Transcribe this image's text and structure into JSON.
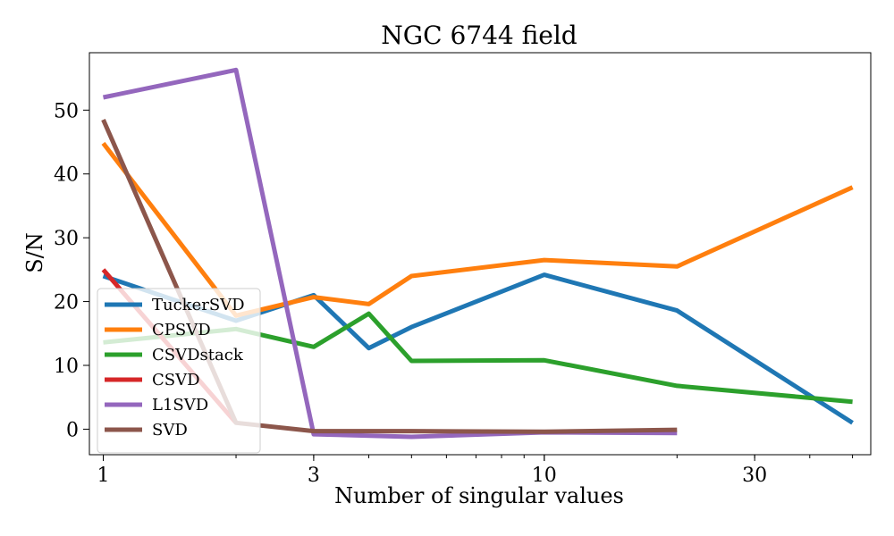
{
  "chart_data": {
    "type": "line",
    "title": "NGC 6744 field",
    "xlabel": "Number of singular values",
    "ylabel": "S/N",
    "xscale": "log",
    "xlim": [
      0.93,
      55
    ],
    "ylim": [
      -4,
      59
    ],
    "xticks": [
      1,
      3,
      10,
      30
    ],
    "xtick_labels": [
      "1",
      "3",
      "10",
      "30"
    ],
    "yticks": [
      0,
      10,
      20,
      30,
      40,
      50
    ],
    "ytick_labels": [
      "0",
      "10",
      "20",
      "30",
      "40",
      "50"
    ],
    "grid": false,
    "legend_position": "lower-left",
    "series": [
      {
        "name": "TuckerSVD",
        "color": "#1f77b4",
        "x": [
          1,
          2,
          3,
          4,
          5,
          10,
          20,
          50
        ],
        "y": [
          24,
          17,
          21,
          12.7,
          16,
          24.2,
          18.6,
          1
        ]
      },
      {
        "name": "CPSVD",
        "color": "#ff7f0e",
        "x": [
          1,
          2,
          3,
          4,
          5,
          10,
          20,
          50
        ],
        "y": [
          44.8,
          17.8,
          20.7,
          19.6,
          24,
          26.5,
          25.5,
          37.9
        ]
      },
      {
        "name": "CSVDstack",
        "color": "#2ca02c",
        "x": [
          1,
          2,
          3,
          4,
          5,
          10,
          20,
          50
        ],
        "y": [
          13.6,
          15.7,
          12.9,
          18.1,
          10.7,
          10.8,
          6.8,
          4.3
        ]
      },
      {
        "name": "CSVD",
        "color": "#d62728",
        "x": [
          1,
          2
        ],
        "y": [
          25,
          1
        ]
      },
      {
        "name": "L1SVD",
        "color": "#9467bd",
        "x": [
          1,
          2,
          3,
          5,
          10,
          20
        ],
        "y": [
          52,
          56.3,
          -0.8,
          -1.2,
          -0.5,
          -0.6
        ]
      },
      {
        "name": "SVD",
        "color": "#8c564b",
        "x": [
          1,
          2,
          3,
          5,
          10,
          20
        ],
        "y": [
          48.5,
          1,
          -0.3,
          -0.3,
          -0.4,
          -0.1
        ]
      }
    ]
  }
}
